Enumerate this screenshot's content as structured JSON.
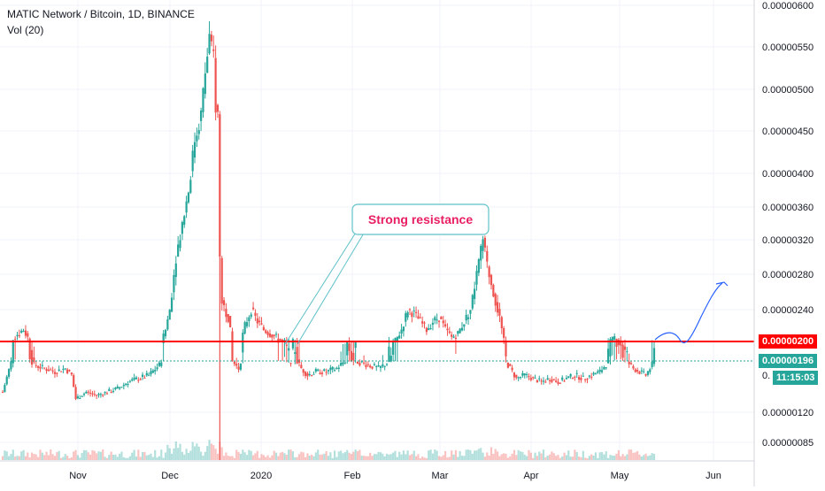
{
  "chart_data": {
    "type": "candlestick",
    "title": "MATIC Network / Bitcoin, 1D, BINANCE",
    "volume_label": "Vol (20)",
    "y_tick_labels": [
      "0.00000600",
      "0.00000550",
      "0.00000500",
      "0.00000450",
      "0.00000400",
      "0.00000360",
      "0.00000320",
      "0.00000280",
      "0.00000240",
      "0.00000120",
      "0.00000085"
    ],
    "x_tick_labels": [
      "Nov",
      "Dec",
      "2020",
      "Feb",
      "Mar",
      "Apr",
      "May",
      "Jun"
    ],
    "resistance_level": "0.00000200",
    "last_price": "0.00000196",
    "countdown": "11:15:03",
    "hidden_tick_label": "0.",
    "annotation": "Strong resistance",
    "colors": {
      "up": "#26a69a",
      "down": "#ef5350",
      "resistance": "#ff0000",
      "last_price": "#26a69a",
      "annotation": "#e91e63",
      "projection": "#2962ff",
      "callout_border": "#5fc1c9"
    },
    "price_path": [
      [
        0,
        1.5e-06
      ],
      [
        5,
        2.05e-06
      ],
      [
        10,
        2.15e-06
      ],
      [
        15,
        1.9e-06
      ],
      [
        20,
        1.85e-06
      ],
      [
        25,
        1.8e-06
      ],
      [
        30,
        1.85e-06
      ],
      [
        33,
        1.75e-06
      ],
      [
        35,
        1.4e-06
      ],
      [
        40,
        1.5e-06
      ],
      [
        45,
        1.45e-06
      ],
      [
        50,
        1.5e-06
      ],
      [
        55,
        1.55e-06
      ],
      [
        60,
        1.65e-06
      ],
      [
        65,
        1.7e-06
      ],
      [
        70,
        1.75e-06
      ],
      [
        75,
        1.9e-06
      ],
      [
        78,
        2.15e-06
      ],
      [
        80,
        2.4e-06
      ],
      [
        83,
        3e-06
      ],
      [
        86,
        3.4e-06
      ],
      [
        89,
        3.8e-06
      ],
      [
        92,
        4.4e-06
      ],
      [
        95,
        4.7e-06
      ],
      [
        97,
        5.2e-06
      ],
      [
        99,
        5.6e-06
      ],
      [
        100,
        5.45e-06
      ],
      [
        101,
        5.4e-06
      ],
      [
        102,
        4.8e-06
      ],
      [
        103,
        4.7e-06
      ],
      [
        104,
        3e-06
      ],
      [
        105,
        2.5e-06
      ],
      [
        108,
        2.3e-06
      ],
      [
        110,
        1.95e-06
      ],
      [
        113,
        1.85e-06
      ],
      [
        116,
        2.2e-06
      ],
      [
        119,
        2.4e-06
      ],
      [
        122,
        2.25e-06
      ],
      [
        125,
        2.15e-06
      ],
      [
        128,
        2.1e-06
      ],
      [
        131,
        2.05e-06
      ],
      [
        134,
        2e-06
      ],
      [
        137,
        1.95e-06
      ],
      [
        140,
        2e-06
      ],
      [
        143,
        1.85e-06
      ],
      [
        146,
        1.75e-06
      ],
      [
        150,
        1.8e-06
      ],
      [
        155,
        1.8e-06
      ],
      [
        160,
        1.85e-06
      ],
      [
        165,
        2e-06
      ],
      [
        170,
        1.95e-06
      ],
      [
        175,
        1.9e-06
      ],
      [
        180,
        1.85e-06
      ],
      [
        185,
        1.95e-06
      ],
      [
        188,
        2e-06
      ],
      [
        191,
        2.15e-06
      ],
      [
        194,
        2.4e-06
      ],
      [
        197,
        2.35e-06
      ],
      [
        200,
        2.25e-06
      ],
      [
        203,
        2.15e-06
      ],
      [
        206,
        2.25e-06
      ],
      [
        209,
        2.3e-06
      ],
      [
        212,
        2.15e-06
      ],
      [
        215,
        2.05e-06
      ],
      [
        218,
        2.1e-06
      ],
      [
        221,
        2.25e-06
      ],
      [
        224,
        2.4e-06
      ],
      [
        227,
        2.8e-06
      ],
      [
        230,
        3.2e-06
      ],
      [
        232,
        2.9e-06
      ],
      [
        234,
        2.7e-06
      ],
      [
        236,
        2.5e-06
      ],
      [
        238,
        2.3e-06
      ],
      [
        240,
        2e-06
      ],
      [
        243,
        1.85e-06
      ],
      [
        246,
        1.7e-06
      ],
      [
        250,
        1.75e-06
      ],
      [
        254,
        1.7e-06
      ],
      [
        258,
        1.65e-06
      ],
      [
        262,
        1.7e-06
      ],
      [
        266,
        1.65e-06
      ],
      [
        270,
        1.7e-06
      ],
      [
        274,
        1.75e-06
      ],
      [
        278,
        1.7e-06
      ],
      [
        282,
        1.75e-06
      ],
      [
        286,
        1.8e-06
      ],
      [
        290,
        1.95e-06
      ],
      [
        293,
        2.05e-06
      ],
      [
        296,
        2e-06
      ],
      [
        299,
        1.95e-06
      ],
      [
        302,
        1.85e-06
      ],
      [
        305,
        1.8e-06
      ],
      [
        308,
        1.75e-06
      ],
      [
        310,
        1.85e-06
      ],
      [
        312,
        1.96e-06
      ]
    ]
  }
}
